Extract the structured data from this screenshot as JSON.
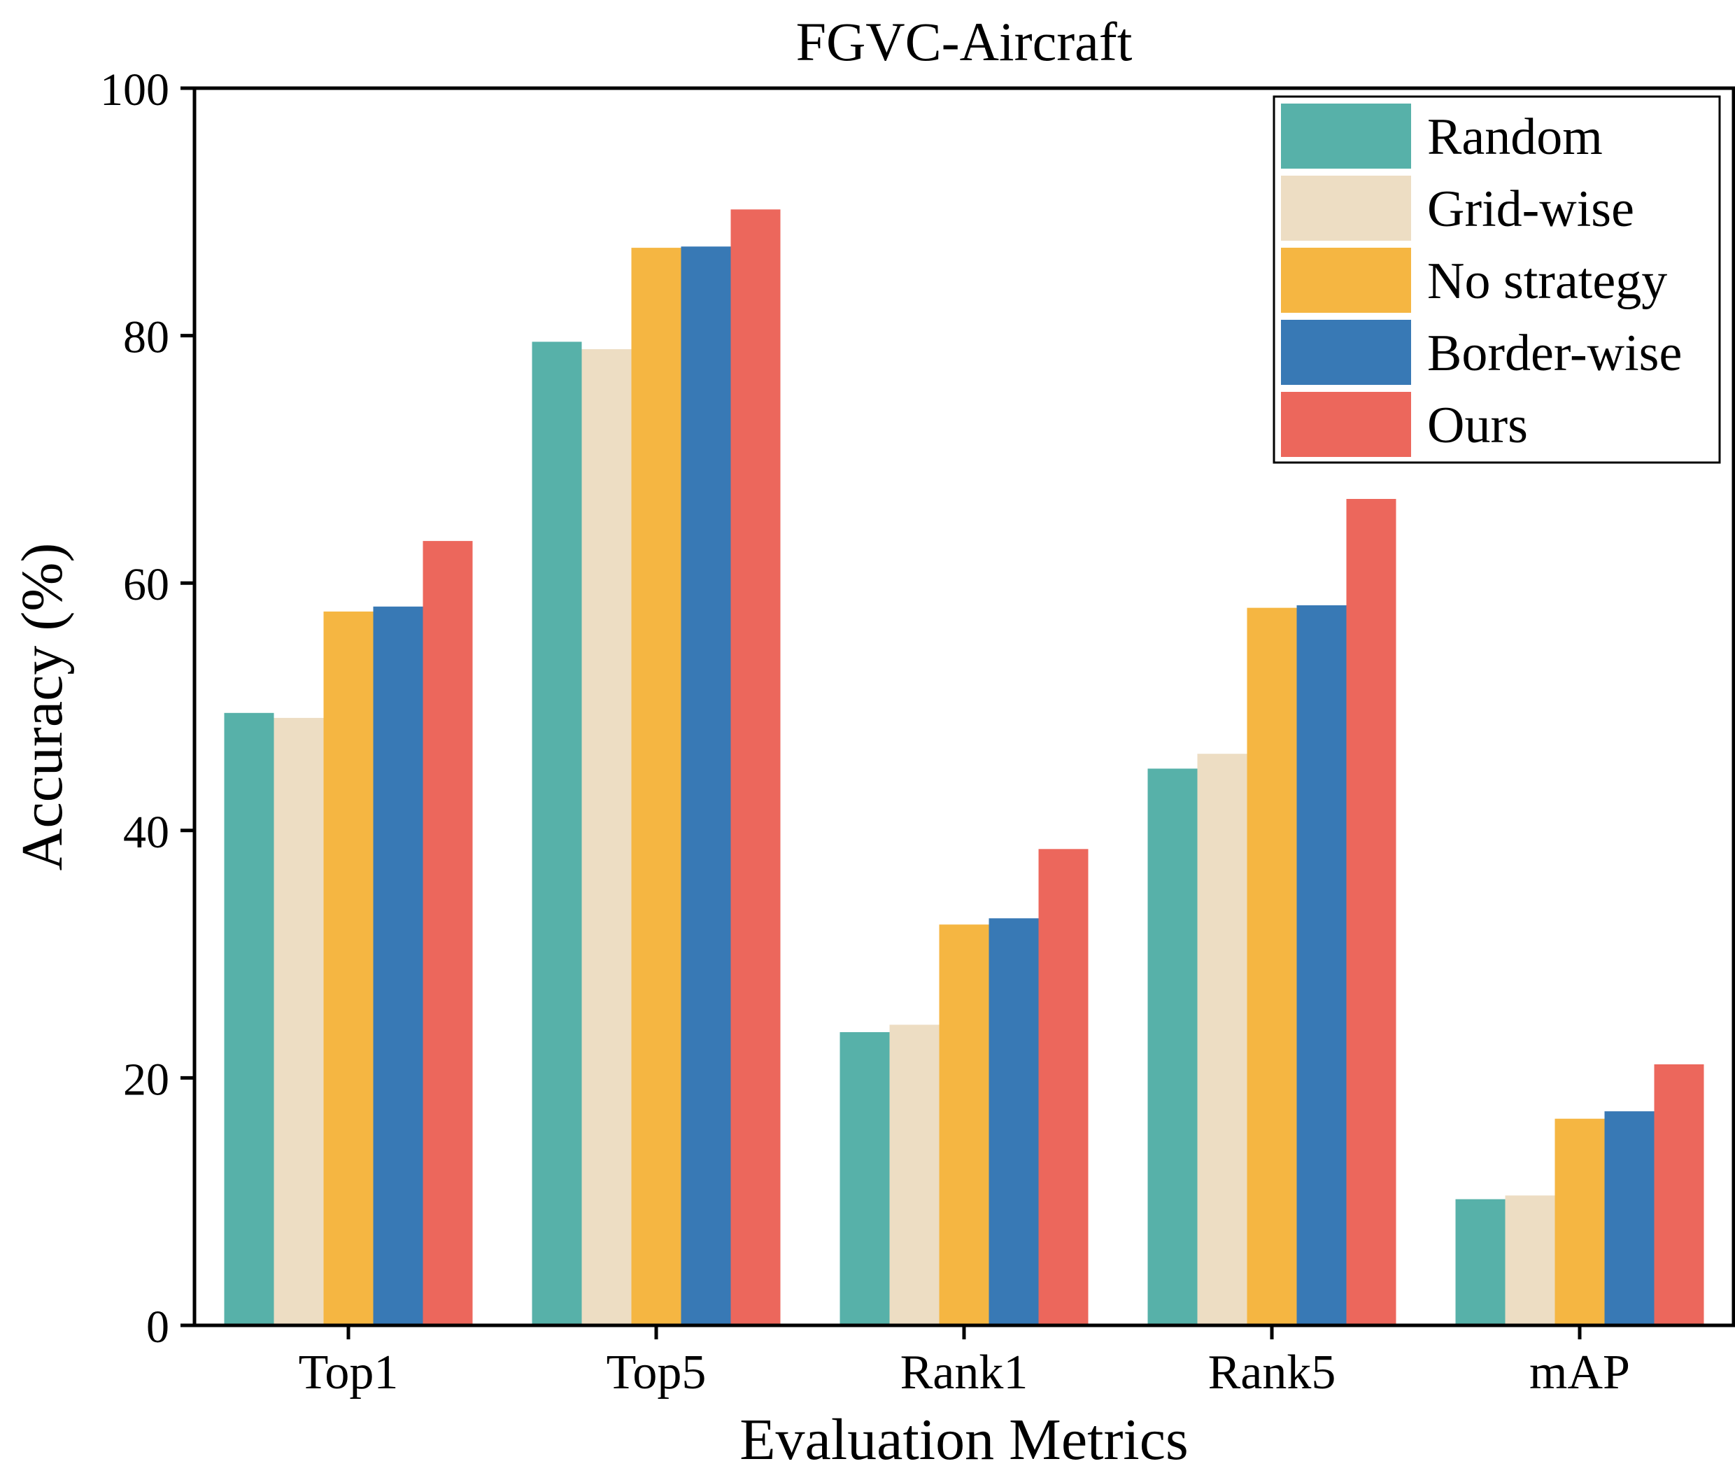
{
  "chart_data": {
    "type": "bar",
    "title": "FGVC-Aircraft",
    "xlabel": "Evaluation Metrics",
    "ylabel": "Accuracy (%)",
    "ylim": [
      0,
      100
    ],
    "yticks": [
      "0",
      "20",
      "40",
      "60",
      "80",
      "100"
    ],
    "categories": [
      "Top1",
      "Top5",
      "Rank1",
      "Rank5",
      "mAP"
    ],
    "legend_position": "top-right",
    "series": [
      {
        "name": "Random",
        "color": "#57B1A9",
        "values": [
          49.5,
          79.5,
          23.7,
          45.0,
          10.2
        ]
      },
      {
        "name": "Grid-wise",
        "color": "#EDDDC3",
        "values": [
          49.1,
          78.9,
          24.3,
          46.2,
          10.5
        ]
      },
      {
        "name": "No strategy",
        "color": "#F5B642",
        "values": [
          57.7,
          87.1,
          32.4,
          58.0,
          16.7
        ]
      },
      {
        "name": "Border-wise",
        "color": "#3879B5",
        "values": [
          58.1,
          87.2,
          32.9,
          58.2,
          17.3
        ]
      },
      {
        "name": "Ours",
        "color": "#EC675C",
        "values": [
          63.4,
          90.2,
          38.5,
          66.8,
          21.1
        ]
      }
    ]
  }
}
